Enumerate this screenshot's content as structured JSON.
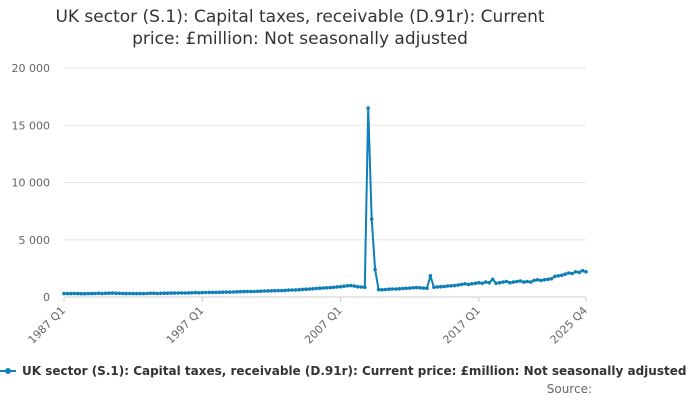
{
  "chart_data": {
    "type": "line",
    "title": "UK sector (S.1): Capital taxes, receivable (D.91r): Current price: £million: Not seasonally adjusted",
    "legend": [
      "UK sector (S.1): Capital taxes, receivable (D.91r): Current price: £million: Not seasonally adjusted"
    ],
    "source": "Source:",
    "x_ticks": [
      "1987 Q1",
      "1997 Q1",
      "2007 Q1",
      "2017 Q1",
      "2025 Q4"
    ],
    "y_ticks": [
      "0",
      "5 000",
      "10 000",
      "15 000",
      "20 000"
    ],
    "ylim": [
      0,
      20000
    ],
    "grid": true,
    "color": "#0f7fb9",
    "series": [
      {
        "values": [
          300,
          300,
          300,
          310,
          300,
          290,
          290,
          300,
          300,
          310,
          320,
          300,
          320,
          330,
          340,
          330,
          320,
          310,
          300,
          310,
          300,
          300,
          300,
          300,
          310,
          320,
          320,
          310,
          320,
          330,
          330,
          340,
          340,
          350,
          360,
          350,
          360,
          370,
          380,
          370,
          380,
          390,
          400,
          400,
          400,
          410,
          420,
          430,
          430,
          440,
          450,
          460,
          470,
          480,
          480,
          480,
          500,
          510,
          520,
          530,
          540,
          550,
          560,
          560,
          580,
          600,
          610,
          620,
          640,
          660,
          680,
          690,
          720,
          750,
          770,
          790,
          800,
          820,
          850,
          880,
          900,
          940,
          980,
          1000,
          950,
          900,
          870,
          860,
          16500,
          6800,
          2400,
          650,
          640,
          650,
          680,
          700,
          700,
          720,
          740,
          760,
          780,
          800,
          820,
          800,
          780,
          760,
          1850,
          850,
          880,
          900,
          920,
          960,
          980,
          1000,
          1050,
          1100,
          1150,
          1100,
          1150,
          1200,
          1250,
          1200,
          1300,
          1250,
          1550,
          1200,
          1250,
          1300,
          1350,
          1250,
          1300,
          1350,
          1400,
          1300,
          1350,
          1300,
          1450,
          1500,
          1450,
          1500,
          1550,
          1600,
          1800,
          1850,
          1900,
          2000,
          2100,
          2050,
          2200,
          2150,
          2300,
          2200
        ]
      }
    ]
  }
}
